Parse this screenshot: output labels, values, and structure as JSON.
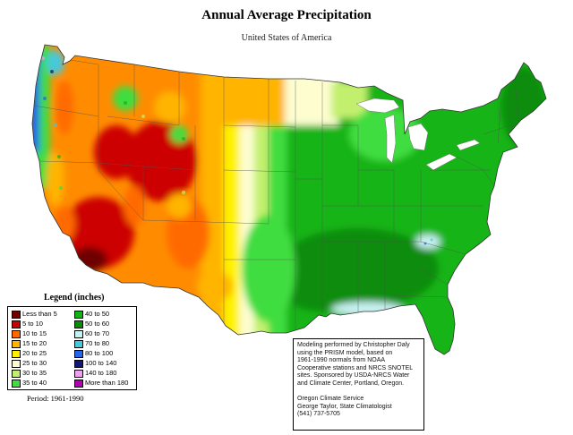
{
  "title": "Annual Average Precipitation",
  "subtitle": "United States of America",
  "legend": {
    "title": "Legend (inches)",
    "left_column": [
      {
        "label": "Less than 5",
        "color": "#6e0000"
      },
      {
        "label": "5 to 10",
        "color": "#cc0000"
      },
      {
        "label": "10 to 15",
        "color": "#ff6a00"
      },
      {
        "label": "15 to 20",
        "color": "#ffb400"
      },
      {
        "label": "20 to 25",
        "color": "#fff200"
      },
      {
        "label": "25 to 30",
        "color": "#fdfdd0"
      },
      {
        "label": "30 to 35",
        "color": "#c2f06e"
      },
      {
        "label": "35 to 40",
        "color": "#3fdd3f"
      }
    ],
    "right_column": [
      {
        "label": "40 to 50",
        "color": "#14b414"
      },
      {
        "label": "50 to 60",
        "color": "#0a8c0a"
      },
      {
        "label": "60 to 70",
        "color": "#c8f0f0"
      },
      {
        "label": "70 to 80",
        "color": "#46c8dc"
      },
      {
        "label": "80 to 100",
        "color": "#2864e6"
      },
      {
        "label": "100 to 140",
        "color": "#14147d"
      },
      {
        "label": "140 to 180",
        "color": "#f0a0f0"
      },
      {
        "label": "More than 180",
        "color": "#b400b4"
      }
    ]
  },
  "period": "Period: 1961-1990",
  "note": {
    "lines": [
      "Modeling performed by Christopher Daly",
      "using the PRISM model, based on",
      "1961-1990 normals from NOAA",
      "Cooperative stations and NRCS SNOTEL",
      "sites. Sponsored by USDA-NRCS Water",
      "and Climate Center, Portland, Oregon."
    ],
    "contact": [
      "Oregon Climate Service",
      "George Taylor, State Climatologist",
      "(541) 737-5705"
    ]
  }
}
